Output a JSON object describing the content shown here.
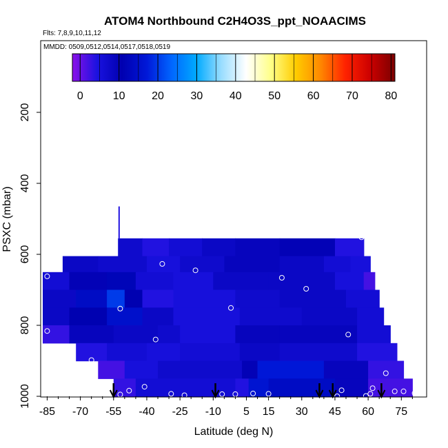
{
  "chart_data": {
    "type": "heatmap",
    "title": "ATOM4 Northbound C2H4O3S_ppt_NOAACIMS",
    "flights_label": "Flts: 7,8,9,10,11,12",
    "mmdd_label": "MMDD: 0509,0512,0514,0517,0518,0519",
    "xlabel": "Latitude (deg N)",
    "ylabel": "PSXC (mbar)",
    "xlim": [
      -87,
      83
    ],
    "ylim": [
      1000,
      0
    ],
    "x_ticks": [
      "-85",
      "-70",
      "-55",
      "-40",
      "-25",
      "-10",
      "5",
      "15",
      "30",
      "45",
      "60",
      "75"
    ],
    "x_tick_values": [
      -85,
      -70,
      -55,
      -40,
      -25,
      -10,
      5,
      15,
      30,
      45,
      60,
      75
    ],
    "y_ticks": [
      "200",
      "400",
      "600",
      "800",
      "1000"
    ],
    "y_tick_values": [
      200,
      400,
      600,
      800,
      1000
    ],
    "colorbar": {
      "ticks": [
        "0",
        "10",
        "20",
        "30",
        "40",
        "50",
        "60",
        "70",
        "80"
      ],
      "tick_values": [
        0,
        10,
        20,
        30,
        40,
        50,
        60,
        70,
        80
      ],
      "range": [
        -2,
        81
      ],
      "stops": [
        "#8b10e8",
        "#1a12e0",
        "#0000b0",
        "#0018d8",
        "#0066ff",
        "#00aaff",
        "#99ddff",
        "#ffffff",
        "#ffff88",
        "#ffcc00",
        "#ff8800",
        "#ff2200",
        "#cc0000",
        "#7a0000"
      ]
    },
    "bands": [
      {
        "p_top": 555,
        "p_bot": 605,
        "segments": [
          [
            -53,
            -42,
            7
          ],
          [
            -42,
            -30,
            4
          ],
          [
            -30,
            -15,
            6
          ],
          [
            -15,
            0,
            8
          ],
          [
            0,
            20,
            9
          ],
          [
            20,
            45,
            10
          ],
          [
            45,
            58,
            4
          ]
        ]
      },
      {
        "p_top": 605,
        "p_bot": 650,
        "segments": [
          [
            -78,
            -62,
            8
          ],
          [
            -62,
            -40,
            7
          ],
          [
            -40,
            -25,
            5
          ],
          [
            -25,
            -5,
            7
          ],
          [
            -5,
            20,
            9
          ],
          [
            20,
            40,
            8
          ],
          [
            40,
            52,
            6
          ],
          [
            52,
            61,
            5
          ]
        ]
      },
      {
        "p_top": 650,
        "p_bot": 700,
        "segments": [
          [
            -87,
            -75,
            6
          ],
          [
            -75,
            -58,
            10
          ],
          [
            -58,
            -45,
            12
          ],
          [
            -45,
            -28,
            6
          ],
          [
            -28,
            -10,
            5
          ],
          [
            -10,
            15,
            8
          ],
          [
            15,
            45,
            8
          ],
          [
            45,
            58,
            5
          ],
          [
            58,
            63,
            2
          ]
        ]
      },
      {
        "p_top": 700,
        "p_bot": 750,
        "segments": [
          [
            -87,
            -72,
            8
          ],
          [
            -72,
            -58,
            14
          ],
          [
            -58,
            -50,
            20
          ],
          [
            -50,
            -42,
            11
          ],
          [
            -42,
            -28,
            4
          ],
          [
            -28,
            0,
            5
          ],
          [
            0,
            20,
            7
          ],
          [
            20,
            50,
            8
          ],
          [
            50,
            65,
            6
          ]
        ]
      },
      {
        "p_top": 750,
        "p_bot": 800,
        "segments": [
          [
            -87,
            -75,
            8
          ],
          [
            -75,
            -58,
            11
          ],
          [
            -58,
            -42,
            15
          ],
          [
            -42,
            -28,
            8
          ],
          [
            -28,
            2,
            5
          ],
          [
            2,
            30,
            7
          ],
          [
            30,
            55,
            8
          ],
          [
            55,
            67,
            6
          ]
        ]
      },
      {
        "p_top": 800,
        "p_bot": 850,
        "segments": [
          [
            -87,
            -75,
            3
          ],
          [
            -75,
            -55,
            9
          ],
          [
            -55,
            -35,
            8
          ],
          [
            -35,
            -25,
            7
          ],
          [
            -25,
            0,
            5
          ],
          [
            0,
            20,
            9
          ],
          [
            20,
            55,
            9
          ],
          [
            55,
            70,
            6
          ]
        ]
      },
      {
        "p_top": 850,
        "p_bot": 900,
        "segments": [
          [
            -72,
            -58,
            4
          ],
          [
            -58,
            -40,
            6
          ],
          [
            -40,
            -25,
            5
          ],
          [
            -25,
            2,
            6
          ],
          [
            2,
            20,
            8
          ],
          [
            20,
            55,
            7
          ],
          [
            55,
            73,
            4
          ]
        ]
      },
      {
        "p_top": 900,
        "p_bot": 950,
        "segments": [
          [
            -62,
            -50,
            2
          ],
          [
            -50,
            -35,
            5
          ],
          [
            -35,
            3,
            7
          ],
          [
            3,
            10,
            10
          ],
          [
            10,
            40,
            17
          ],
          [
            40,
            60,
            9
          ],
          [
            60,
            76,
            3
          ]
        ]
      },
      {
        "p_top": 950,
        "p_bot": 1000,
        "segments": [
          [
            -55,
            -45,
            3
          ],
          [
            -45,
            0,
            6
          ],
          [
            0,
            6,
            4
          ],
          [
            6,
            15,
            16
          ],
          [
            15,
            45,
            14
          ],
          [
            45,
            60,
            9
          ],
          [
            60,
            80,
            2
          ]
        ]
      }
    ],
    "spike": {
      "lat": -52.5,
      "p_top": 465,
      "p_bot": 555
    },
    "points": [
      {
        "lat": 57,
        "p": 552
      },
      {
        "lat": -33,
        "p": 627
      },
      {
        "lat": -18,
        "p": 645
      },
      {
        "lat": -85,
        "p": 662
      },
      {
        "lat": 21,
        "p": 666
      },
      {
        "lat": 32,
        "p": 697
      },
      {
        "lat": -52,
        "p": 753
      },
      {
        "lat": -2,
        "p": 751
      },
      {
        "lat": -85,
        "p": 816
      },
      {
        "lat": -36,
        "p": 840
      },
      {
        "lat": 51,
        "p": 826
      },
      {
        "lat": -65,
        "p": 898
      },
      {
        "lat": 68,
        "p": 935
      },
      {
        "lat": -41,
        "p": 973
      },
      {
        "lat": 48,
        "p": 983
      },
      {
        "lat": 62,
        "p": 977
      },
      {
        "lat": 72,
        "p": 986
      },
      {
        "lat": 76,
        "p": 986
      },
      {
        "lat": 81,
        "p": 991
      },
      {
        "lat": -52,
        "p": 995
      },
      {
        "lat": -48,
        "p": 984
      },
      {
        "lat": -29,
        "p": 993
      },
      {
        "lat": -23,
        "p": 997
      },
      {
        "lat": -6,
        "p": 994
      },
      {
        "lat": 0,
        "p": 994
      },
      {
        "lat": 8,
        "p": 992
      },
      {
        "lat": 15,
        "p": 993
      },
      {
        "lat": 46,
        "p": 1000
      },
      {
        "lat": 59,
        "p": 999
      },
      {
        "lat": 61,
        "p": 993
      }
    ],
    "arrows": [
      -55,
      -9,
      38,
      44,
      66
    ]
  }
}
